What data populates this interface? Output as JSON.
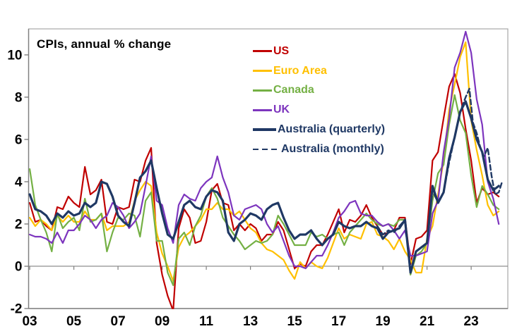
{
  "title": "CPIs, annual % change",
  "colors": {
    "background": "#FFFFFF",
    "plot_border": "#A6A6A6",
    "axis_line": "#808080",
    "tick_text": "#000000",
    "us": "#C00000",
    "euro_area": "#FFC000",
    "canada": "#74B044",
    "uk": "#7D35BE",
    "australia": "#1F3864"
  },
  "chart_data": {
    "type": "line",
    "title": "CPIs, annual % change",
    "grid": false,
    "legend_position": "top-center-inside",
    "x_axis": {
      "min": 2002.95,
      "max": 2024.66,
      "ticks": [
        2003,
        2005,
        2007,
        2009,
        2011,
        2013,
        2015,
        2017,
        2019,
        2021,
        2023
      ],
      "tick_labels": [
        "03",
        "05",
        "07",
        "09",
        "11",
        "13",
        "15",
        "17",
        "19",
        "21",
        "23"
      ]
    },
    "y_axis": {
      "min": -2,
      "max": 11.23,
      "ticks": [
        -2,
        0,
        2,
        4,
        6,
        8,
        10
      ],
      "zero_line": 0
    },
    "series": [
      {
        "name": "US",
        "color": "#C00000",
        "width": 2.2,
        "dash": null,
        "x_start": 2003,
        "x_step": 0.25,
        "values": [
          3.0,
          2.1,
          2.2,
          1.9,
          1.7,
          2.8,
          2.7,
          3.3,
          3.0,
          2.8,
          4.7,
          3.4,
          3.6,
          4.1,
          2.1,
          2.0,
          2.8,
          2.7,
          2.8,
          4.1,
          4.0,
          5.0,
          5.6,
          1.1,
          -0.4,
          -1.4,
          -2.1,
          1.8,
          2.7,
          2.3,
          1.1,
          1.2,
          2.1,
          3.6,
          3.9,
          3.0,
          2.9,
          1.7,
          2.0,
          1.7,
          2.0,
          1.8,
          1.2,
          1.5,
          1.5,
          2.1,
          1.7,
          0.8,
          -0.1,
          0.1,
          0.0,
          0.7,
          1.0,
          1.0,
          1.5,
          2.1,
          2.7,
          1.6,
          2.2,
          2.1,
          2.4,
          2.9,
          2.3,
          1.9,
          1.5,
          1.6,
          1.7,
          2.3,
          2.3,
          0.1,
          1.3,
          1.4,
          1.7,
          5.0,
          5.4,
          7.0,
          8.5,
          9.1,
          8.2,
          6.5,
          5.0,
          3.0,
          3.7,
          3.4,
          3.5,
          3.3
        ]
      },
      {
        "name": "Euro Area",
        "color": "#FFC000",
        "width": 2.2,
        "dash": null,
        "x_start": 2003,
        "x_step": 0.25,
        "values": [
          2.3,
          1.9,
          2.2,
          2.0,
          1.7,
          2.4,
          2.1,
          2.4,
          2.1,
          2.1,
          2.6,
          2.2,
          2.2,
          2.5,
          1.7,
          1.9,
          1.9,
          1.9,
          2.1,
          3.1,
          3.6,
          4.0,
          3.8,
          1.6,
          0.6,
          0.0,
          -0.7,
          0.9,
          1.4,
          1.6,
          1.9,
          2.2,
          2.7,
          2.7,
          3.0,
          2.7,
          2.7,
          2.4,
          2.6,
          2.2,
          1.8,
          1.6,
          1.1,
          0.8,
          0.7,
          0.5,
          0.3,
          -0.2,
          -0.6,
          0.2,
          -0.1,
          0.2,
          0.0,
          -0.1,
          0.4,
          1.1,
          1.8,
          1.3,
          1.5,
          1.4,
          1.3,
          2.0,
          2.1,
          1.5,
          1.4,
          1.2,
          0.8,
          1.3,
          0.7,
          0.3,
          -0.3,
          -0.3,
          1.3,
          1.9,
          3.4,
          5.0,
          7.4,
          8.6,
          9.9,
          10.6,
          6.9,
          5.5,
          4.3,
          2.9,
          2.4,
          2.6
        ]
      },
      {
        "name": "Canada",
        "color": "#74B044",
        "width": 2.2,
        "dash": null,
        "x_start": 2003,
        "x_step": 0.25,
        "values": [
          4.6,
          2.9,
          2.2,
          1.6,
          0.7,
          2.5,
          1.8,
          2.1,
          2.3,
          1.7,
          3.2,
          2.1,
          2.2,
          2.5,
          0.7,
          1.6,
          2.3,
          2.2,
          2.5,
          2.4,
          1.4,
          3.1,
          3.5,
          1.2,
          1.2,
          -0.3,
          -0.9,
          1.3,
          1.6,
          1.0,
          1.9,
          2.4,
          3.3,
          3.7,
          3.2,
          2.3,
          1.9,
          1.5,
          1.2,
          0.8,
          1.0,
          1.2,
          1.1,
          1.2,
          1.5,
          2.4,
          2.0,
          1.5,
          1.0,
          1.0,
          1.0,
          1.6,
          1.4,
          1.5,
          1.3,
          1.5,
          1.6,
          1.0,
          1.6,
          1.9,
          2.2,
          2.5,
          2.2,
          2.0,
          1.9,
          2.0,
          1.9,
          2.2,
          2.2,
          -0.4,
          0.5,
          0.7,
          1.1,
          3.1,
          4.4,
          4.8,
          6.7,
          8.1,
          6.9,
          6.3,
          4.3,
          2.8,
          3.8,
          3.4,
          2.9,
          2.7
        ]
      },
      {
        "name": "UK",
        "color": "#7D35BE",
        "width": 2.2,
        "dash": null,
        "x_start": 2003,
        "x_step": 0.25,
        "values": [
          1.5,
          1.4,
          1.4,
          1.3,
          1.1,
          1.6,
          1.1,
          1.7,
          1.7,
          2.0,
          2.4,
          2.2,
          1.8,
          2.2,
          2.4,
          3.0,
          2.8,
          2.4,
          1.8,
          2.1,
          2.5,
          3.8,
          5.2,
          3.1,
          2.9,
          1.8,
          1.1,
          2.9,
          3.4,
          3.2,
          3.1,
          3.7,
          4.0,
          4.2,
          5.2,
          4.2,
          3.5,
          2.4,
          2.2,
          2.7,
          2.8,
          2.9,
          2.7,
          2.0,
          1.6,
          1.9,
          1.2,
          0.5,
          0.0,
          0.0,
          -0.1,
          0.2,
          0.5,
          0.5,
          1.0,
          1.6,
          2.3,
          2.6,
          3.0,
          3.1,
          2.5,
          2.4,
          2.4,
          2.1,
          1.9,
          2.0,
          1.7,
          1.3,
          1.7,
          0.5,
          0.5,
          0.6,
          0.7,
          2.5,
          3.1,
          5.4,
          7.0,
          9.4,
          10.1,
          11.1,
          10.1,
          7.9,
          6.7,
          4.0,
          3.2,
          2.0
        ]
      },
      {
        "name": "Australia (quarterly)",
        "color": "#1F3864",
        "width": 3.2,
        "dash": null,
        "x_start": 2003,
        "x_step": 0.25,
        "values": [
          3.4,
          2.7,
          2.6,
          2.4,
          2.0,
          2.5,
          2.3,
          2.6,
          2.4,
          2.5,
          3.0,
          2.8,
          3.0,
          4.0,
          3.9,
          3.3,
          2.4,
          2.1,
          1.9,
          3.0,
          4.2,
          4.5,
          5.0,
          3.7,
          2.5,
          1.5,
          1.3,
          2.1,
          2.9,
          3.1,
          2.8,
          2.7,
          3.3,
          3.6,
          3.5,
          3.1,
          1.6,
          1.2,
          2.0,
          2.2,
          2.5,
          2.4,
          2.2,
          2.7,
          2.9,
          3.0,
          2.3,
          1.7,
          1.3,
          1.5,
          1.5,
          1.7,
          1.3,
          1.0,
          1.3,
          1.5,
          2.1,
          1.9,
          1.8,
          1.9,
          1.9,
          2.1,
          1.9,
          1.8,
          1.3,
          1.6,
          1.7,
          1.8,
          2.2,
          -0.3,
          0.7,
          0.9,
          1.1,
          3.8,
          3.0,
          3.5,
          5.1,
          6.1,
          7.3,
          7.8,
          7.0,
          6.0,
          5.4,
          4.1,
          3.6,
          3.8
        ]
      },
      {
        "name": "Australia (monthly)",
        "color": "#1F3864",
        "width": 2.4,
        "dash": "7,4",
        "x": [
          2018.75,
          2019.0,
          2019.25,
          2019.5,
          2019.75,
          2020.0,
          2020.25,
          2020.5,
          2020.75,
          2021.0,
          2021.25,
          2021.5,
          2021.75,
          2022.0,
          2022.25,
          2022.5,
          2022.75,
          2022.92,
          2023.08,
          2023.25,
          2023.42,
          2023.58,
          2023.75,
          2023.92,
          2024.08,
          2024.25,
          2024.4
        ],
        "values": [
          1.9,
          1.5,
          1.7,
          1.6,
          1.9,
          2.2,
          -0.3,
          0.7,
          0.9,
          1.1,
          3.6,
          3.0,
          3.5,
          4.9,
          6.1,
          7.3,
          8.0,
          8.4,
          6.8,
          6.3,
          5.6,
          5.2,
          5.6,
          4.3,
          3.4,
          3.5,
          4.0
        ]
      }
    ]
  }
}
